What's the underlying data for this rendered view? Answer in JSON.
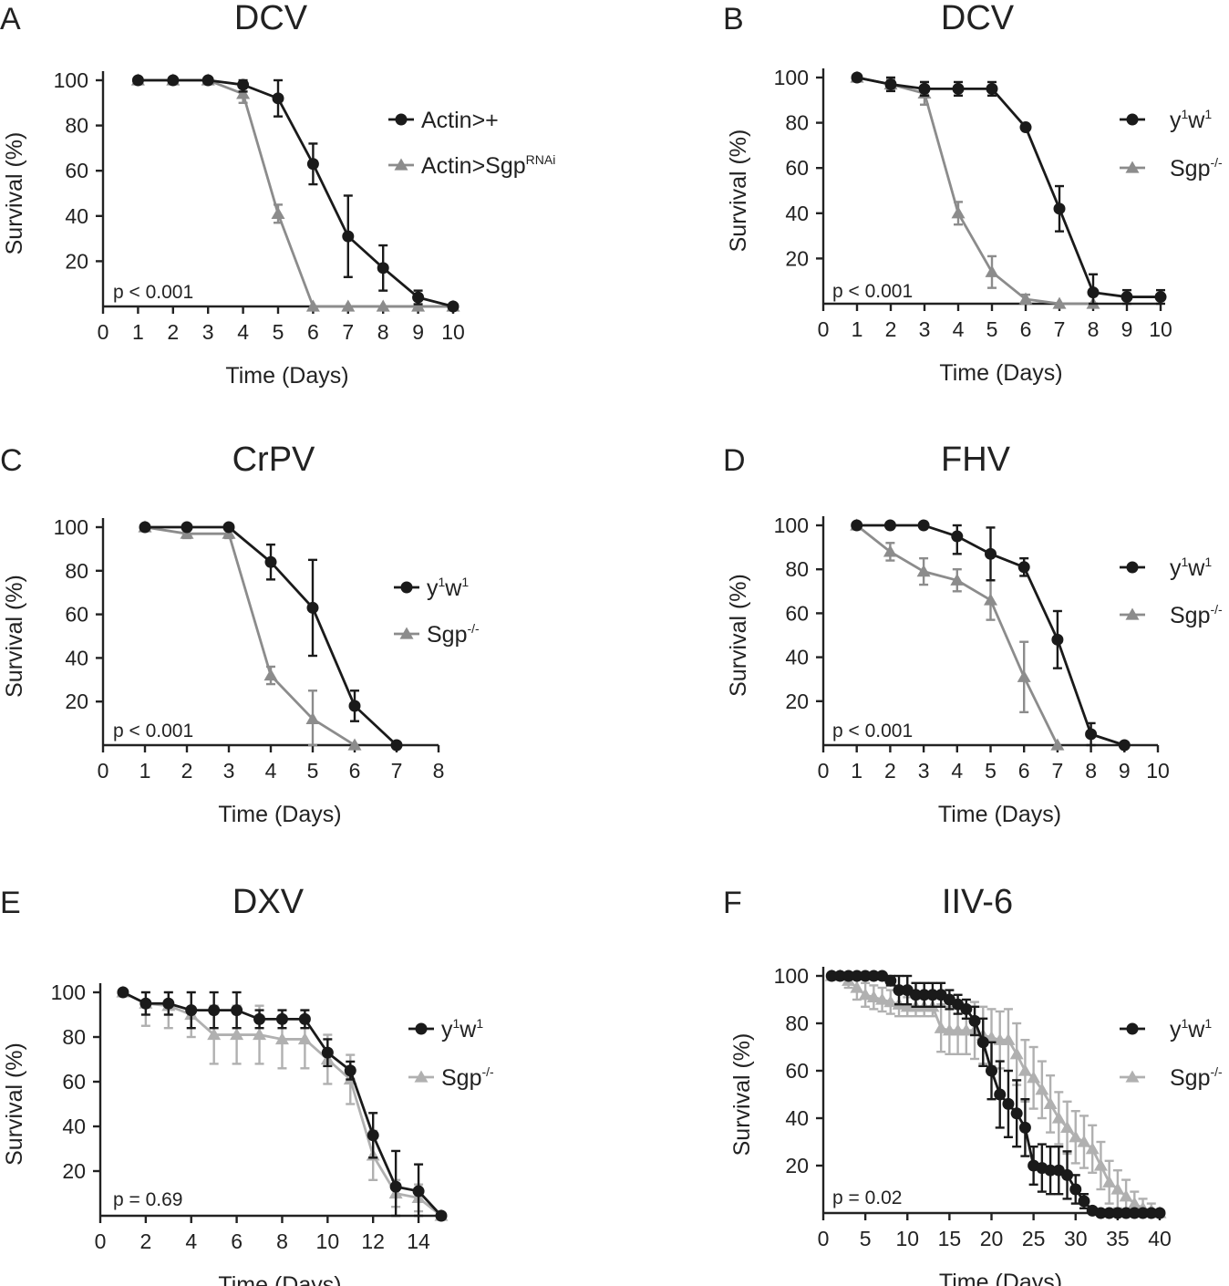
{
  "chart_data": [
    {
      "type": "line",
      "panel": "A",
      "title": "DCV",
      "xlabel": "Time (Days)",
      "ylabel": "Survival (%)",
      "xlim": [
        0,
        10
      ],
      "ylim": [
        0,
        100
      ],
      "xticks": [
        0,
        1,
        2,
        3,
        4,
        5,
        6,
        7,
        8,
        9,
        10
      ],
      "yticks": [
        20,
        40,
        60,
        80,
        100
      ],
      "pvalue": "p < 0.001",
      "legend_position": "top-right",
      "series": [
        {
          "name": "Actin>+",
          "name_sup": "",
          "color": "#1a1a1a",
          "marker": "circle",
          "x": [
            1,
            2,
            3,
            4,
            5,
            6,
            7,
            8,
            9,
            10
          ],
          "y": [
            100,
            100,
            100,
            98,
            92,
            63,
            31,
            17,
            4,
            0
          ],
          "err": [
            0,
            0,
            0,
            3,
            8,
            9,
            18,
            10,
            3,
            1
          ]
        },
        {
          "name": "Actin>Sgp",
          "name_sup": "RNAi",
          "color": "#8c8c8c",
          "marker": "triangle",
          "x": [
            1,
            2,
            3,
            4,
            5,
            6,
            7,
            8,
            9,
            10
          ],
          "y": [
            100,
            100,
            100,
            94,
            41,
            0,
            0,
            0,
            0,
            0
          ],
          "err": [
            0,
            0,
            0,
            4,
            4,
            0,
            0,
            0,
            0,
            0
          ]
        }
      ]
    },
    {
      "type": "line",
      "panel": "B",
      "title": "DCV",
      "xlabel": "Time (Days)",
      "ylabel": "Survival (%)",
      "xlim": [
        0,
        10
      ],
      "ylim": [
        0,
        100
      ],
      "xticks": [
        0,
        1,
        2,
        3,
        4,
        5,
        6,
        7,
        8,
        9,
        10
      ],
      "yticks": [
        20,
        40,
        60,
        80,
        100
      ],
      "pvalue": "p < 0.001",
      "legend_position": "top-right",
      "series": [
        {
          "name": "y",
          "name_sup": "1",
          "name2": "w",
          "name2_sup": "1",
          "color": "#1a1a1a",
          "marker": "circle",
          "x": [
            1,
            2,
            3,
            4,
            5,
            6,
            7,
            8,
            9,
            10
          ],
          "y": [
            100,
            97,
            95,
            95,
            95,
            78,
            42,
            5,
            3,
            3
          ],
          "err": [
            1,
            3,
            3,
            3,
            3,
            1,
            10,
            8,
            3,
            3
          ]
        },
        {
          "name": "Sgp",
          "name_sup": "-/-",
          "color": "#8c8c8c",
          "marker": "triangle",
          "x": [
            1,
            2,
            3,
            4,
            5,
            6,
            7,
            8
          ],
          "y": [
            100,
            97,
            93,
            40,
            14,
            2,
            0,
            0
          ],
          "err": [
            1,
            2,
            5,
            5,
            7,
            2,
            0,
            0
          ]
        }
      ]
    },
    {
      "type": "line",
      "panel": "C",
      "title": "CrPV",
      "xlabel": "Time (Days)",
      "ylabel": "Survival (%)",
      "xlim": [
        0,
        8
      ],
      "ylim": [
        0,
        100
      ],
      "xticks": [
        0,
        1,
        2,
        3,
        4,
        5,
        6,
        7,
        8
      ],
      "yticks": [
        20,
        40,
        60,
        80,
        100
      ],
      "pvalue": "p < 0.001",
      "legend_position": "right",
      "series": [
        {
          "name": "y",
          "name_sup": "1",
          "name2": "w",
          "name2_sup": "1",
          "color": "#1a1a1a",
          "marker": "circle",
          "x": [
            1,
            2,
            3,
            4,
            5,
            6,
            7
          ],
          "y": [
            100,
            100,
            100,
            84,
            63,
            18,
            0
          ],
          "err": [
            0,
            0,
            0,
            8,
            22,
            7,
            0
          ]
        },
        {
          "name": "Sgp",
          "name_sup": "-/-",
          "color": "#8c8c8c",
          "marker": "triangle",
          "x": [
            1,
            2,
            3,
            4,
            5,
            6
          ],
          "y": [
            100,
            97,
            97,
            32,
            12,
            0
          ],
          "err": [
            0,
            2,
            2,
            4,
            13,
            0
          ]
        }
      ]
    },
    {
      "type": "line",
      "panel": "D",
      "title": "FHV",
      "xlabel": "Time (Days)",
      "ylabel": "Survival (%)",
      "xlim": [
        0,
        10
      ],
      "ylim": [
        0,
        100
      ],
      "xticks": [
        0,
        1,
        2,
        3,
        4,
        5,
        6,
        7,
        8,
        9,
        10
      ],
      "yticks": [
        20,
        40,
        60,
        80,
        100
      ],
      "pvalue": "p < 0.001",
      "legend_position": "top-right",
      "series": [
        {
          "name": "y",
          "name_sup": "1",
          "name2": "w",
          "name2_sup": "1",
          "color": "#1a1a1a",
          "marker": "circle",
          "x": [
            1,
            2,
            3,
            4,
            5,
            6,
            7,
            8,
            9
          ],
          "y": [
            100,
            100,
            100,
            95,
            87,
            81,
            48,
            5,
            0
          ],
          "err": [
            0,
            0,
            0,
            8,
            12,
            4,
            13,
            5,
            0
          ]
        },
        {
          "name": "Sgp",
          "name_sup": "-/-",
          "color": "#8c8c8c",
          "marker": "triangle",
          "x": [
            1,
            2,
            3,
            4,
            5,
            6,
            7
          ],
          "y": [
            100,
            88,
            79,
            75,
            66,
            31,
            0
          ],
          "err": [
            0,
            4,
            6,
            5,
            9,
            16,
            0
          ]
        }
      ]
    },
    {
      "type": "line",
      "panel": "E",
      "title": "DXV",
      "xlabel": "Time (Days)",
      "ylabel": "Survival (%)",
      "xlim": [
        0,
        15
      ],
      "ylim": [
        0,
        100
      ],
      "xticks": [
        0,
        2,
        4,
        6,
        8,
        10,
        12,
        14
      ],
      "yticks": [
        20,
        40,
        60,
        80,
        100
      ],
      "pvalue": "p = 0.69",
      "legend_position": "top-right",
      "series": [
        {
          "name": "y",
          "name_sup": "1",
          "name2": "w",
          "name2_sup": "1",
          "color": "#1a1a1a",
          "marker": "circle",
          "x": [
            1,
            2,
            3,
            4,
            5,
            6,
            7,
            8,
            9,
            10,
            11,
            12,
            13,
            14,
            15
          ],
          "y": [
            100,
            95,
            95,
            92,
            92,
            92,
            88,
            88,
            88,
            73,
            65,
            36,
            13,
            11,
            0
          ],
          "err": [
            0,
            5,
            5,
            8,
            8,
            8,
            4,
            4,
            4,
            6,
            4,
            10,
            16,
            12,
            0
          ]
        },
        {
          "name": "Sgp",
          "name_sup": "-/-",
          "color": "#b0b0b0",
          "marker": "triangle",
          "x": [
            1,
            2,
            3,
            4,
            5,
            6,
            7,
            8,
            9,
            10,
            11,
            12,
            13,
            14,
            15
          ],
          "y": [
            100,
            95,
            94,
            90,
            81,
            81,
            81,
            79,
            79,
            70,
            61,
            27,
            10,
            8,
            0
          ],
          "err": [
            0,
            10,
            10,
            10,
            13,
            13,
            13,
            13,
            13,
            11,
            11,
            11,
            6,
            6,
            0
          ]
        }
      ]
    },
    {
      "type": "line",
      "panel": "F",
      "title": "IIV-6",
      "xlabel": "Time (Days)",
      "ylabel": "Survival (%)",
      "xlim": [
        0,
        40
      ],
      "ylim": [
        0,
        100
      ],
      "xticks": [
        0,
        5,
        10,
        15,
        20,
        25,
        30,
        35,
        40
      ],
      "yticks": [
        20,
        40,
        60,
        80,
        100
      ],
      "pvalue": "p = 0.02",
      "legend_position": "top-right",
      "series": [
        {
          "name": "y",
          "name_sup": "1",
          "name2": "w",
          "name2_sup": "1",
          "color": "#1a1a1a",
          "marker": "circle",
          "x": [
            1,
            2,
            3,
            4,
            5,
            6,
            7,
            8,
            9,
            10,
            11,
            12,
            13,
            14,
            15,
            16,
            17,
            18,
            19,
            20,
            21,
            22,
            23,
            24,
            25,
            26,
            27,
            28,
            29,
            30,
            31,
            32,
            33,
            34,
            35,
            36,
            37,
            38,
            39,
            40
          ],
          "y": [
            100,
            100,
            100,
            100,
            100,
            100,
            100,
            98,
            94,
            94,
            92,
            92,
            92,
            92,
            90,
            88,
            86,
            81,
            72,
            60,
            50,
            46,
            42,
            36,
            20,
            19,
            18,
            18,
            16,
            10,
            5,
            1,
            0,
            0,
            0,
            0,
            0,
            0,
            0,
            0
          ],
          "err": [
            0,
            0,
            0,
            0,
            0,
            0,
            0,
            2,
            6,
            6,
            5,
            5,
            5,
            5,
            4,
            4,
            4,
            6,
            10,
            12,
            14,
            14,
            14,
            12,
            8,
            10,
            10,
            10,
            10,
            6,
            3,
            1,
            0,
            0,
            0,
            0,
            0,
            0,
            0,
            0
          ]
        },
        {
          "name": "Sgp",
          "name_sup": "-/-",
          "color": "#b0b0b0",
          "marker": "triangle",
          "x": [
            1,
            2,
            3,
            4,
            5,
            6,
            7,
            8,
            9,
            10,
            11,
            12,
            13,
            14,
            15,
            16,
            17,
            18,
            19,
            20,
            21,
            22,
            23,
            24,
            25,
            26,
            27,
            28,
            29,
            30,
            31,
            32,
            33,
            34,
            35,
            36,
            37,
            38,
            39,
            40
          ],
          "y": [
            100,
            100,
            98,
            95,
            92,
            91,
            90,
            89,
            88,
            87,
            87,
            87,
            87,
            78,
            77,
            77,
            77,
            77,
            75,
            74,
            73,
            73,
            67,
            60,
            57,
            52,
            46,
            40,
            36,
            32,
            30,
            27,
            20,
            13,
            10,
            7,
            4,
            2,
            1,
            0
          ],
          "err": [
            0,
            0,
            3,
            5,
            5,
            5,
            5,
            5,
            5,
            4,
            4,
            4,
            4,
            10,
            10,
            10,
            10,
            12,
            12,
            12,
            12,
            13,
            13,
            13,
            13,
            12,
            12,
            11,
            11,
            11,
            11,
            10,
            10,
            9,
            8,
            7,
            5,
            4,
            3,
            0
          ]
        }
      ]
    }
  ]
}
